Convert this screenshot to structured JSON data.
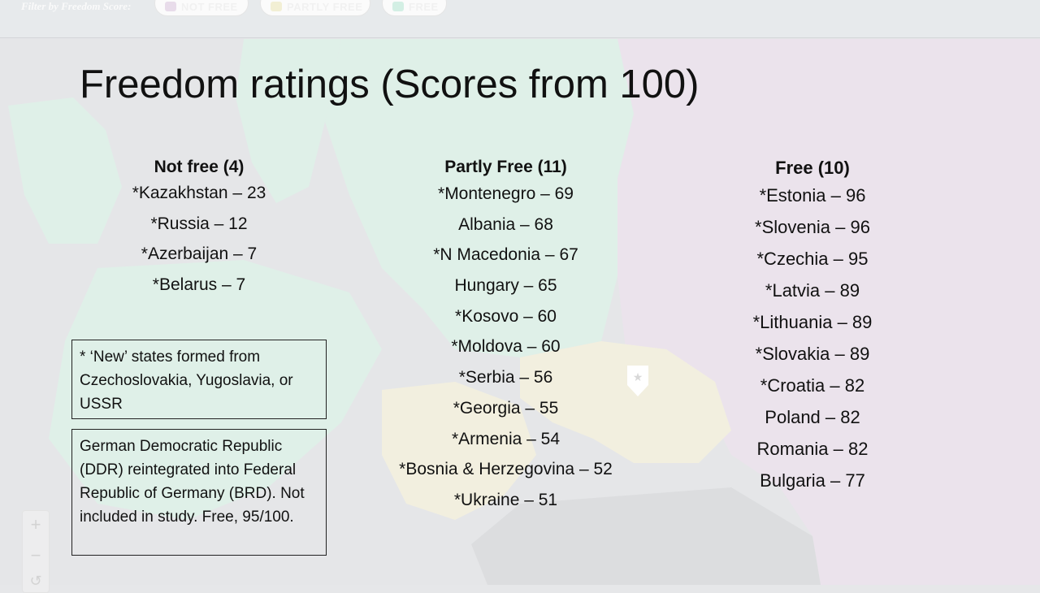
{
  "filter_bar": {
    "label": "Filter by Freedom Score:",
    "options": [
      {
        "label": "NOT FREE",
        "color": "#e8dcea"
      },
      {
        "label": "PARTLY FREE",
        "color": "#f2efd4"
      },
      {
        "label": "FREE",
        "color": "#d3efe4"
      }
    ]
  },
  "map_controls": {
    "zoom_in": "+",
    "zoom_out": "−",
    "reset": "↺"
  },
  "slide": {
    "title": "Freedom ratings (Scores from 100)",
    "not_free": {
      "heading": "Not free (4)",
      "items": [
        "*Kazakhstan – 23",
        "*Russia – 12",
        "*Azerbaijan  – 7",
        "*Belarus – 7"
      ]
    },
    "partly_free": {
      "heading": "Partly Free (11)",
      "items": [
        "*Montenegro  – 69",
        "Albania – 68",
        "*N Macedonia – 67",
        "Hungary – 65",
        "*Kosovo – 60",
        "*Moldova – 60",
        "*Serbia – 56",
        "*Georgia – 55",
        "*Armenia – 54",
        "*Bosnia & Herzegovina – 52",
        "*Ukraine – 51"
      ]
    },
    "free": {
      "heading": "Free (10)",
      "items": [
        "*Estonia – 96",
        "*Slovenia – 96",
        "*Czechia – 95",
        "*Latvia – 89",
        "*Lithuania – 89",
        "*Slovakia – 89",
        "*Croatia – 82",
        "Poland – 82",
        "Romania – 82",
        "Bulgaria – 77"
      ]
    },
    "note_new_states": "* ‘New’ states formed from Czechoslovakia, Yugoslavia, or USSR",
    "note_ddr": "German Democratic Republic (DDR) reintegrated into Federal Republic of Germany (BRD). Not included in study. Free, 95/100."
  },
  "colors": {
    "not_free": "#ebe3ec",
    "partly_free": "#f2efdf",
    "free": "#deefe6",
    "sea": "#e6e7e9"
  }
}
